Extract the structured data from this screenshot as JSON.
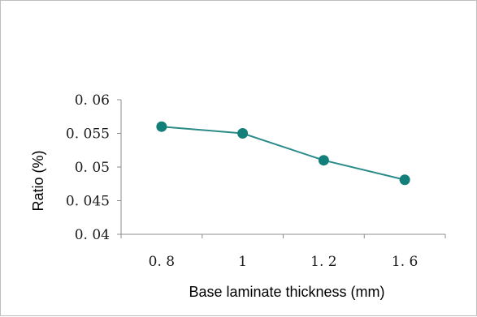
{
  "chart_data": {
    "type": "line",
    "title": "",
    "xlabel": "Base laminate thickness (mm)",
    "ylabel": "Ratio (%)",
    "categories": [
      "0. 8",
      "1",
      "1. 2",
      "1. 6"
    ],
    "series": [
      {
        "values": [
          0.056,
          0.055,
          0.051,
          0.0481
        ]
      }
    ],
    "ylim": [
      0.04,
      0.06
    ],
    "yticks": [
      "0. 04",
      "0. 045",
      "0. 05",
      "0. 055",
      "0. 06"
    ],
    "grid": false,
    "legend": "none",
    "colors": {
      "line": "#2a8b89",
      "marker": "#137f7a",
      "axis": "#8c8c8c"
    }
  }
}
